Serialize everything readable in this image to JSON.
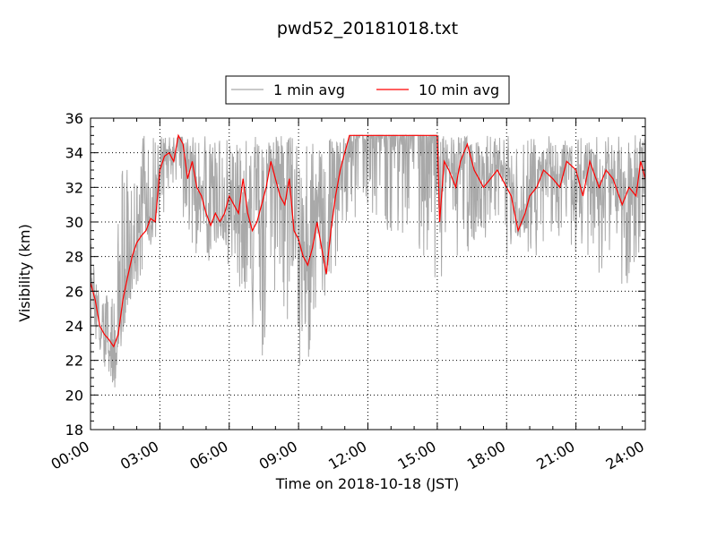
{
  "chart_data": {
    "type": "line",
    "title": "pwd52_20181018.txt",
    "xlabel": "Time on 2018-10-18 (JST)",
    "ylabel": "Visibility (km)",
    "xlim": [
      0,
      24
    ],
    "ylim": [
      18,
      36
    ],
    "x_ticks": [
      0,
      3,
      6,
      9,
      12,
      15,
      18,
      21,
      24
    ],
    "x_tick_labels": [
      "00:00",
      "03:00",
      "06:00",
      "09:00",
      "12:00",
      "15:00",
      "18:00",
      "21:00",
      "24:00"
    ],
    "y_ticks": [
      18,
      20,
      22,
      24,
      26,
      28,
      30,
      32,
      34,
      36
    ],
    "y_tick_labels": [
      "18",
      "20",
      "22",
      "24",
      "26",
      "28",
      "30",
      "32",
      "34",
      "36"
    ],
    "grid": true,
    "legend_position": "top-center",
    "series": [
      {
        "name": "1 min avg",
        "color": "#a9a9a9",
        "x": [
          0,
          0.25,
          0.5,
          0.75,
          1,
          1.25,
          1.5,
          1.75,
          2,
          2.25,
          2.5,
          2.75,
          3,
          3.25,
          3.5,
          3.75,
          4,
          4.25,
          4.5,
          4.75,
          5,
          5.25,
          5.5,
          5.75,
          6,
          6.25,
          6.5,
          6.75,
          7,
          7.25,
          7.5,
          7.75,
          8,
          8.25,
          8.5,
          8.75,
          9,
          9.25,
          9.5,
          9.75,
          10,
          10.25,
          10.5,
          10.75,
          11,
          11.5,
          12,
          12.5,
          13,
          13.5,
          14,
          14.5,
          14.75,
          15,
          15.25,
          15.5,
          16,
          16.5,
          17,
          17.5,
          18,
          18.25,
          18.5,
          19,
          19.5,
          20,
          20.5,
          21,
          21.5,
          22,
          22.5,
          23,
          23.5,
          24
        ],
        "low": [
          26,
          23,
          22,
          21,
          20,
          22,
          24,
          25,
          26,
          27,
          28,
          29,
          29,
          31,
          32,
          31,
          30,
          29,
          28,
          27,
          26,
          27,
          28,
          28,
          27,
          27,
          26,
          25,
          24,
          23,
          22,
          21,
          21,
          22,
          23,
          24,
          20,
          21,
          22,
          23,
          25,
          26,
          27,
          28,
          29,
          29,
          30,
          30,
          29,
          29,
          28,
          28,
          27,
          25,
          27,
          28,
          28,
          28,
          28,
          29,
          27,
          28,
          29,
          28,
          28,
          29,
          29,
          28,
          28,
          27,
          27,
          26,
          26,
          28
        ],
        "high": [
          29,
          27,
          26,
          26,
          26,
          33,
          34,
          34,
          34,
          35,
          35,
          35,
          35,
          35,
          35,
          35,
          35,
          35,
          35,
          35,
          35,
          35,
          35,
          35,
          35,
          35,
          35,
          35,
          35,
          35,
          35,
          35,
          35,
          35,
          35,
          35,
          35,
          35,
          35,
          35,
          35,
          35,
          35,
          35,
          35,
          35,
          35,
          35,
          35,
          35,
          35,
          35,
          35,
          35,
          35,
          35,
          35,
          35,
          35,
          35,
          35,
          35,
          35,
          35,
          35,
          35,
          35,
          35,
          35,
          35,
          35,
          35,
          35,
          35
        ]
      },
      {
        "name": "10 min avg",
        "color": "#ff0000",
        "x": [
          0,
          0.2,
          0.4,
          0.6,
          0.8,
          1.0,
          1.2,
          1.4,
          1.6,
          1.8,
          2.0,
          2.2,
          2.4,
          2.6,
          2.8,
          3.0,
          3.2,
          3.4,
          3.6,
          3.8,
          4.0,
          4.2,
          4.4,
          4.6,
          4.8,
          5.0,
          5.2,
          5.4,
          5.6,
          5.8,
          6.0,
          6.2,
          6.4,
          6.6,
          6.8,
          7.0,
          7.2,
          7.4,
          7.6,
          7.8,
          8.0,
          8.2,
          8.4,
          8.6,
          8.8,
          9.0,
          9.2,
          9.4,
          9.6,
          9.8,
          10.0,
          10.2,
          10.4,
          10.6,
          10.8,
          11.0,
          11.2,
          11.4,
          11.6,
          11.8,
          12.0,
          12.5,
          13.0,
          13.5,
          14.0,
          14.5,
          14.8,
          15.0,
          15.1,
          15.3,
          15.5,
          15.8,
          16.0,
          16.3,
          16.6,
          17.0,
          17.3,
          17.6,
          18.0,
          18.2,
          18.5,
          18.8,
          19.0,
          19.3,
          19.6,
          20.0,
          20.3,
          20.6,
          21.0,
          21.3,
          21.6,
          22.0,
          22.3,
          22.6,
          23.0,
          23.3,
          23.6,
          23.8,
          24.0
        ],
        "y": [
          26.5,
          25.5,
          24.0,
          23.5,
          23.2,
          22.8,
          23.5,
          25.5,
          26.8,
          28.0,
          28.8,
          29.2,
          29.5,
          30.2,
          30.0,
          33.0,
          33.8,
          34.0,
          33.5,
          35.0,
          34.5,
          32.5,
          33.5,
          32.0,
          31.5,
          30.5,
          29.8,
          30.5,
          30.0,
          30.5,
          31.5,
          31.0,
          30.5,
          32.5,
          30.5,
          29.5,
          30.0,
          31.0,
          32.0,
          33.5,
          32.5,
          31.5,
          31.0,
          32.5,
          29.5,
          29.0,
          28.0,
          27.5,
          28.5,
          30.0,
          28.5,
          27.0,
          29.5,
          31.5,
          33.0,
          34.0,
          35.0,
          35.0,
          35.0,
          35.0,
          35.0,
          35.0,
          35.0,
          35.0,
          35.0,
          35.0,
          35.0,
          35.0,
          30.0,
          33.5,
          33.0,
          32.0,
          33.5,
          34.5,
          33.0,
          32.0,
          32.5,
          33.0,
          32.0,
          31.5,
          29.5,
          30.5,
          31.5,
          32.0,
          33.0,
          32.5,
          32.0,
          33.5,
          33.0,
          31.5,
          33.5,
          32.0,
          33.0,
          32.5,
          31.0,
          32.0,
          31.5,
          33.5,
          32.5
        ]
      }
    ]
  }
}
